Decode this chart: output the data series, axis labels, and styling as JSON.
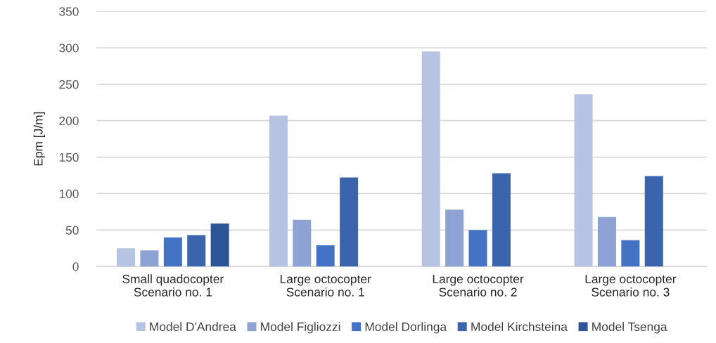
{
  "chart_data": {
    "type": "bar",
    "ylabel": "Epm [J/m]",
    "categories": [
      "Small quadocopter\nScenario no. 1",
      "Large octocopter\nScenario no. 1",
      "Large octocopter\nScenario no. 2",
      "Large octocopter\nScenario no. 3"
    ],
    "series": [
      {
        "name": "Model D'Andrea",
        "color": "#b7c3e3",
        "values": [
          25,
          207,
          295,
          236
        ]
      },
      {
        "name": "Model Figliozzi",
        "color": "#8fa2d4",
        "values": [
          22,
          64,
          78,
          68
        ]
      },
      {
        "name": "Model Dorlinga",
        "color": "#4472c4",
        "values": [
          40,
          29,
          50,
          36
        ]
      },
      {
        "name": "Model Kirchsteina",
        "color": "#3b64ad",
        "values": [
          43,
          122,
          128,
          124
        ]
      },
      {
        "name": "Model Tsenga",
        "color": "#2e5597",
        "values": [
          59,
          null,
          null,
          null
        ]
      }
    ],
    "ylim": [
      0,
      350
    ],
    "yticks": [
      0,
      50,
      100,
      150,
      200,
      250,
      300,
      350
    ],
    "grid": "y",
    "legend": "bottom"
  }
}
